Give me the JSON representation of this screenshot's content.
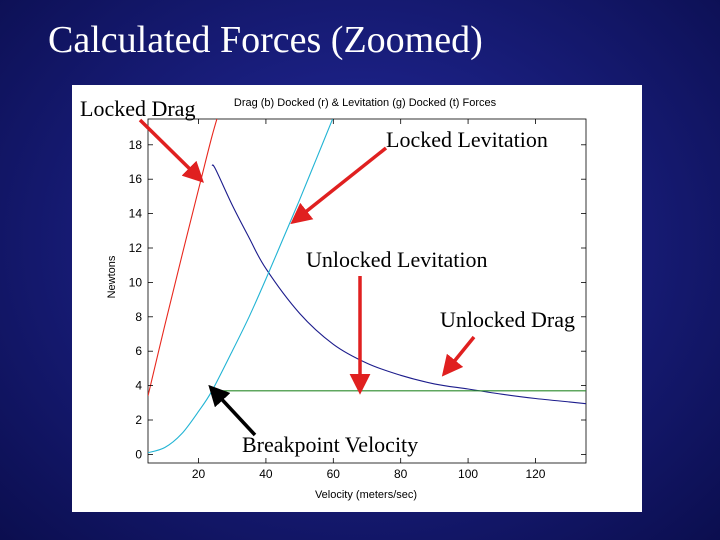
{
  "slide": {
    "title": "Calculated Forces  (Zoomed)"
  },
  "colors": {
    "background": "#1a1f80",
    "drag_locked": "#e8281e",
    "levitation_locked": "#22b4d4",
    "drag_unlocked": "#1c1c8c",
    "levitation_unlocked": "#2a8a2a",
    "arrow_red": "#e02020",
    "arrow_black": "#000000"
  },
  "callouts": {
    "locked_drag": "Locked Drag",
    "locked_levitation": "Locked Levitation",
    "unlocked_levitation": "Unlocked Levitation",
    "unlocked_drag": "Unlocked Drag",
    "breakpoint_velocity": "Breakpoint Velocity"
  },
  "chart_data": {
    "type": "line",
    "title": "Drag (b) Docked (r) & Levitation (g) Docked (t) Forces",
    "xlabel": "Velocity (meters/sec)",
    "ylabel": "Newtons",
    "xlim": [
      5,
      135
    ],
    "ylim": [
      -0.5,
      19.5
    ],
    "xticks": [
      20,
      40,
      60,
      80,
      100,
      120
    ],
    "yticks": [
      0,
      2,
      4,
      6,
      8,
      10,
      12,
      14,
      16,
      18
    ],
    "grid": false,
    "breakpoint_x": 24,
    "series": [
      {
        "name": "Locked Drag",
        "color": "#e8281e",
        "x": [
          5,
          10,
          15,
          20,
          24,
          27
        ],
        "y": [
          3.4,
          7.5,
          11.5,
          15.4,
          18.5,
          20.5
        ]
      },
      {
        "name": "Unlocked Drag",
        "color": "#1c1c8c",
        "x": [
          24,
          25,
          30,
          35,
          40,
          50,
          60,
          70,
          80,
          90,
          100,
          110,
          120,
          130,
          135
        ],
        "y": [
          16.8,
          16.6,
          14.5,
          12.6,
          10.8,
          8.2,
          6.4,
          5.3,
          4.6,
          4.1,
          3.8,
          3.5,
          3.25,
          3.05,
          2.95
        ]
      },
      {
        "name": "Locked Levitation",
        "color": "#22b4d4",
        "x": [
          5,
          10,
          15,
          20,
          24,
          30,
          35,
          40,
          45,
          50,
          55,
          60
        ],
        "y": [
          0.1,
          0.4,
          1.2,
          2.5,
          3.7,
          6.0,
          8.0,
          10.2,
          12.5,
          14.8,
          17.2,
          19.6
        ]
      },
      {
        "name": "Unlocked Levitation",
        "color": "#2a8a2a",
        "x": [
          24,
          135
        ],
        "y": [
          3.7,
          3.7
        ]
      }
    ]
  }
}
